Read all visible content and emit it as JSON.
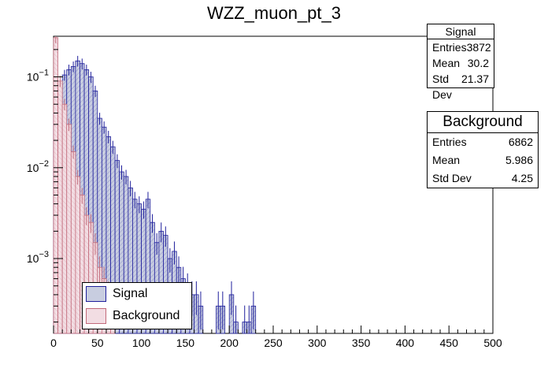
{
  "chart_data": {
    "type": "histogram",
    "title": "WZZ_muon_pt_3",
    "xlabel": "",
    "ylabel": "",
    "x_range": [
      0,
      500
    ],
    "y_scale": "log",
    "ylim": [
      0.00015,
      0.28
    ],
    "x_ticks": [
      "0",
      "50",
      "100",
      "150",
      "200",
      "250",
      "300",
      "350",
      "400",
      "450",
      "500"
    ],
    "y_ticks": [
      "10^-3",
      "10^-2",
      "10^-1"
    ],
    "bin_width": 5,
    "series": [
      {
        "name": "Signal",
        "color": "#1f1f9c",
        "fill": "#c8cde0",
        "bins": [
          {
            "x": 0,
            "v": 0.04
          },
          {
            "x": 5,
            "v": 0.075
          },
          {
            "x": 10,
            "v": 0.105
          },
          {
            "x": 15,
            "v": 0.12
          },
          {
            "x": 20,
            "v": 0.13
          },
          {
            "x": 25,
            "v": 0.15
          },
          {
            "x": 30,
            "v": 0.14
          },
          {
            "x": 35,
            "v": 0.12
          },
          {
            "x": 40,
            "v": 0.1
          },
          {
            "x": 45,
            "v": 0.07
          },
          {
            "x": 50,
            "v": 0.035
          },
          {
            "x": 55,
            "v": 0.028
          },
          {
            "x": 60,
            "v": 0.022
          },
          {
            "x": 65,
            "v": 0.017
          },
          {
            "x": 70,
            "v": 0.012
          },
          {
            "x": 75,
            "v": 0.009
          },
          {
            "x": 80,
            "v": 0.008
          },
          {
            "x": 85,
            "v": 0.006
          },
          {
            "x": 90,
            "v": 0.0045
          },
          {
            "x": 95,
            "v": 0.004
          },
          {
            "x": 100,
            "v": 0.0035
          },
          {
            "x": 105,
            "v": 0.0045
          },
          {
            "x": 110,
            "v": 0.0025
          },
          {
            "x": 115,
            "v": 0.0015
          },
          {
            "x": 120,
            "v": 0.002
          },
          {
            "x": 125,
            "v": 0.0018
          },
          {
            "x": 130,
            "v": 0.001
          },
          {
            "x": 135,
            "v": 0.0012
          },
          {
            "x": 140,
            "v": 0.0008
          },
          {
            "x": 145,
            "v": 0.0006
          },
          {
            "x": 150,
            "v": 0.0005
          },
          {
            "x": 155,
            "v": 0.0004
          },
          {
            "x": 160,
            "v": 0.0004
          },
          {
            "x": 165,
            "v": 0.0003
          },
          {
            "x": 185,
            "v": 0.0003
          },
          {
            "x": 190,
            "v": 0.0003
          },
          {
            "x": 200,
            "v": 0.0004
          },
          {
            "x": 205,
            "v": 0.0002
          },
          {
            "x": 215,
            "v": 0.0002
          },
          {
            "x": 220,
            "v": 0.0002
          },
          {
            "x": 225,
            "v": 0.0003
          }
        ]
      },
      {
        "name": "Background",
        "color": "#c26a7a",
        "fill": "#f2dde3",
        "bins": [
          {
            "x": 0,
            "v": 0.27
          },
          {
            "x": 5,
            "v": 0.09
          },
          {
            "x": 10,
            "v": 0.05
          },
          {
            "x": 15,
            "v": 0.03
          },
          {
            "x": 20,
            "v": 0.015
          },
          {
            "x": 25,
            "v": 0.008
          },
          {
            "x": 30,
            "v": 0.005
          },
          {
            "x": 35,
            "v": 0.003
          },
          {
            "x": 40,
            "v": 0.0025
          },
          {
            "x": 45,
            "v": 0.0015
          },
          {
            "x": 50,
            "v": 0.0008
          },
          {
            "x": 55,
            "v": 0.0006
          },
          {
            "x": 60,
            "v": 0.0004
          },
          {
            "x": 65,
            "v": 0.0003
          }
        ]
      }
    ],
    "legend": [
      {
        "label": "Signal",
        "fill": "#c8cde0",
        "color": "#1f1f9c"
      },
      {
        "label": "Background",
        "fill": "#f2dde3",
        "color": "#c26a7a"
      }
    ],
    "stats": [
      {
        "title": "Signal",
        "entries_label": "Entries",
        "entries": "3872",
        "mean_label": "Mean",
        "mean": "30.2",
        "std_label": "Std Dev",
        "std": "21.37"
      },
      {
        "title": "Background",
        "entries_label": "Entries",
        "entries": "6862",
        "mean_label": "Mean",
        "mean": "5.986",
        "std_label": "Std Dev",
        "std": "4.25"
      }
    ]
  }
}
